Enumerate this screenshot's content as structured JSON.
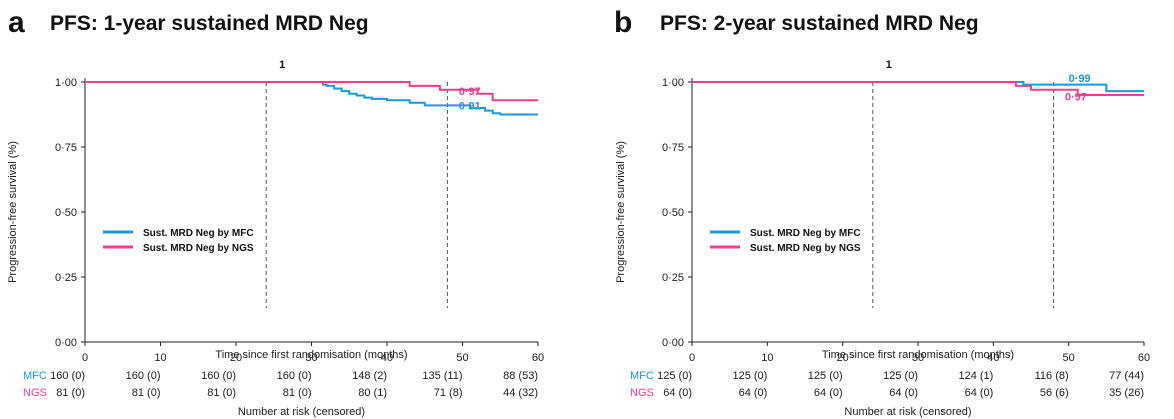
{
  "colors": {
    "mfc": "#1a9ad6",
    "ngs": "#ec3f8f"
  },
  "chart_data": [
    {
      "type": "line",
      "letter": "a",
      "title": "PFS: 1-year sustained MRD Neg",
      "xlabel": "Time since first randomisation (months)",
      "ylabel": "Progression-free survival (%)",
      "xlim": [
        0,
        60
      ],
      "ylim": [
        0,
        1
      ],
      "x_ticks": [
        "0",
        "10",
        "20",
        "30",
        "40",
        "50",
        "60"
      ],
      "y_ticks": [
        "0·00",
        "0·25",
        "0·50",
        "0·75",
        "1·00"
      ],
      "vlines": [
        24,
        48
      ],
      "vline_label": "1",
      "legend_position": "center-left",
      "series": [
        {
          "name": "Sust. MRD Neg by MFC",
          "color_key": "mfc",
          "x": [
            0,
            31,
            31.5,
            32,
            33,
            34,
            35,
            36,
            37,
            38,
            40,
            43,
            45,
            48,
            51,
            53,
            54,
            55,
            56,
            60
          ],
          "y": [
            1.0,
            1.0,
            0.99,
            0.985,
            0.975,
            0.965,
            0.955,
            0.948,
            0.94,
            0.935,
            0.93,
            0.92,
            0.91,
            0.91,
            0.9,
            0.89,
            0.88,
            0.875,
            0.875,
            0.875
          ]
        },
        {
          "name": "Sust. MRD Neg by NGS",
          "color_key": "ngs",
          "x": [
            0,
            43,
            47,
            52,
            54,
            60
          ],
          "y": [
            1.0,
            0.985,
            0.97,
            0.955,
            0.93,
            0.93
          ]
        }
      ],
      "annotations": [
        {
          "text": "0·97",
          "x": 49.5,
          "y": 0.965,
          "color_key": "ngs"
        },
        {
          "text": "0·91",
          "x": 49.5,
          "y": 0.91,
          "color_key": "mfc"
        }
      ],
      "risk_table": {
        "title": "Number at risk (censored)",
        "rows": [
          {
            "label": "MFC",
            "color_key": "mfc",
            "values": [
              "160 (0)",
              "160 (0)",
              "160 (0)",
              "160 (0)",
              "148 (2)",
              "135 (11)",
              "88 (53)"
            ]
          },
          {
            "label": "NGS",
            "color_key": "ngs",
            "values": [
              "81 (0)",
              "81 (0)",
              "81 (0)",
              "81 (0)",
              "80 (1)",
              "71 (8)",
              "44 (32)"
            ]
          }
        ]
      }
    },
    {
      "type": "line",
      "letter": "b",
      "title": "PFS: 2-year sustained MRD Neg",
      "xlabel": "Time since first randomisation (months)",
      "ylabel": "Progression-free survival (%)",
      "xlim": [
        0,
        60
      ],
      "ylim": [
        0,
        1
      ],
      "x_ticks": [
        "0",
        "10",
        "20",
        "30",
        "40",
        "50",
        "60"
      ],
      "y_ticks": [
        "0·00",
        "0·25",
        "0·50",
        "0·75",
        "1·00"
      ],
      "vlines": [
        24,
        48
      ],
      "vline_label": "1",
      "legend_position": "center-left",
      "series": [
        {
          "name": "Sust. MRD Neg by MFC",
          "color_key": "mfc",
          "x": [
            0,
            43,
            44,
            54,
            55,
            60
          ],
          "y": [
            1.0,
            1.0,
            0.99,
            0.99,
            0.965,
            0.965
          ]
        },
        {
          "name": "Sust. MRD Neg by NGS",
          "color_key": "ngs",
          "x": [
            0,
            43,
            45,
            51,
            51.2,
            60
          ],
          "y": [
            1.0,
            0.985,
            0.97,
            0.97,
            0.95,
            0.95
          ]
        }
      ],
      "annotations": [
        {
          "text": "0·99",
          "x": 50,
          "y": 1.015,
          "color_key": "mfc"
        },
        {
          "text": "0·97",
          "x": 49.5,
          "y": 0.945,
          "color_key": "ngs"
        }
      ],
      "risk_table": {
        "title": "Number at risk (censored)",
        "rows": [
          {
            "label": "MFC",
            "color_key": "mfc",
            "values": [
              "125 (0)",
              "125 (0)",
              "125 (0)",
              "125 (0)",
              "124 (1)",
              "116 (8)",
              "77 (44)"
            ]
          },
          {
            "label": "NGS",
            "color_key": "ngs",
            "values": [
              "64 (0)",
              "64 (0)",
              "64 (0)",
              "64 (0)",
              "64 (0)",
              "56 (6)",
              "35 (26)"
            ]
          }
        ]
      }
    }
  ]
}
